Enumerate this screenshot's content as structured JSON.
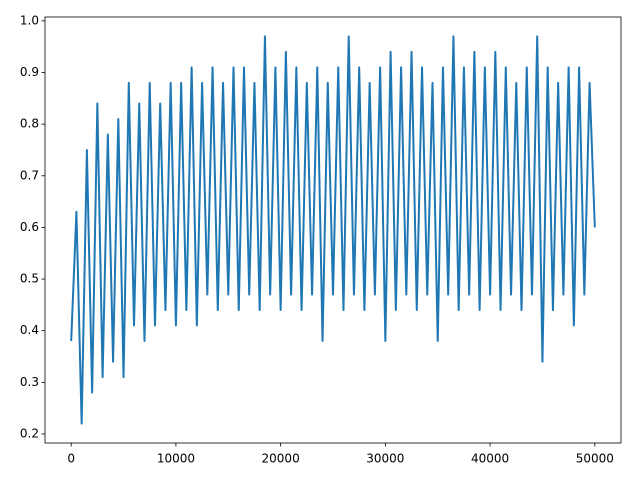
{
  "chart_data": {
    "type": "line",
    "color": "#1f77b4",
    "x": [
      0,
      500,
      1000,
      1500,
      2000,
      2500,
      3000,
      3500,
      4000,
      4500,
      5000,
      5500,
      6000,
      6500,
      7000,
      7500,
      8000,
      8500,
      9000,
      9500,
      10000,
      10500,
      11000,
      11500,
      12000,
      12500,
      13000,
      13500,
      14000,
      14500,
      15000,
      15500,
      16000,
      16500,
      17000,
      17500,
      18000,
      18500,
      19000,
      19500,
      20000,
      20500,
      21000,
      21500,
      22000,
      22500,
      23000,
      23500,
      24000,
      24500,
      25000,
      25500,
      26000,
      26500,
      27000,
      27500,
      28000,
      28500,
      29000,
      29500,
      30000,
      30500,
      31000,
      31500,
      32000,
      32500,
      33000,
      33500,
      34000,
      34500,
      35000,
      35500,
      36000,
      36500,
      37000,
      37500,
      38000,
      38500,
      39000,
      39500,
      40000,
      40500,
      41000,
      41500,
      42000,
      42500,
      43000,
      43500,
      44000,
      44500,
      45000,
      45500,
      46000,
      46500,
      47000,
      47500,
      48000,
      48500,
      49000,
      49500,
      50000
    ],
    "values": [
      0.38,
      0.63,
      0.22,
      0.75,
      0.28,
      0.84,
      0.31,
      0.78,
      0.34,
      0.81,
      0.31,
      0.88,
      0.41,
      0.84,
      0.38,
      0.88,
      0.41,
      0.84,
      0.44,
      0.88,
      0.41,
      0.88,
      0.44,
      0.91,
      0.41,
      0.88,
      0.47,
      0.91,
      0.44,
      0.88,
      0.47,
      0.91,
      0.44,
      0.91,
      0.47,
      0.88,
      0.44,
      0.97,
      0.47,
      0.91,
      0.44,
      0.94,
      0.47,
      0.91,
      0.44,
      0.88,
      0.47,
      0.91,
      0.38,
      0.88,
      0.47,
      0.91,
      0.44,
      0.97,
      0.47,
      0.91,
      0.44,
      0.88,
      0.47,
      0.91,
      0.38,
      0.94,
      0.44,
      0.91,
      0.47,
      0.94,
      0.44,
      0.91,
      0.47,
      0.88,
      0.38,
      0.91,
      0.47,
      0.97,
      0.44,
      0.91,
      0.47,
      0.94,
      0.44,
      0.91,
      0.47,
      0.94,
      0.44,
      0.91,
      0.47,
      0.88,
      0.44,
      0.91,
      0.47,
      0.97,
      0.34,
      0.91,
      0.44,
      0.88,
      0.47,
      0.91,
      0.41,
      0.91,
      0.47,
      0.88,
      0.6
    ],
    "xlim": [
      -2500,
      52500
    ],
    "xticks": [
      0,
      10000,
      20000,
      30000,
      40000,
      50000
    ],
    "ylim": [
      0.1825,
      1.0075
    ],
    "yticks": [
      0.2,
      0.3,
      0.4,
      0.5,
      0.6,
      0.7,
      0.8,
      0.9,
      {
        "value": 1,
        "label": "1.0"
      }
    ]
  }
}
